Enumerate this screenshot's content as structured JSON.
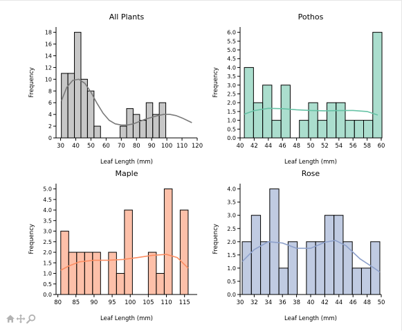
{
  "toolbar": {
    "icons": [
      "home-icon",
      "pan-icon",
      "zoom-icon"
    ]
  },
  "chart_data": [
    {
      "type": "histogram",
      "title": "All Plants",
      "xlabel": "Leaf Length (mm)",
      "ylabel": "Frequency",
      "color": "#999999",
      "kde_color": "#7a7a7a",
      "xlim": [
        27,
        120
      ],
      "ylim": [
        0,
        18.9
      ],
      "xticks": [
        30,
        40,
        50,
        60,
        70,
        80,
        90,
        100,
        110,
        120
      ],
      "yticks": [
        0,
        2,
        4,
        6,
        8,
        10,
        12,
        14,
        16,
        18
      ],
      "bin_edges": [
        30.5,
        34.8,
        39.1,
        43.4,
        47.7,
        52.0,
        56.3,
        60.6,
        64.9,
        69.2,
        73.5,
        77.8,
        82.1,
        86.4,
        90.7,
        95.0,
        99.3,
        103.6,
        107.9,
        112.2,
        116.5
      ],
      "counts": [
        11,
        11,
        18,
        10,
        8,
        2,
        0,
        0,
        0,
        2,
        5,
        4,
        3,
        6,
        4,
        6,
        0,
        0,
        0,
        0
      ],
      "kde": [
        [
          30.5,
          6.3
        ],
        [
          34,
          8.6
        ],
        [
          38,
          9.8
        ],
        [
          42,
          10.0
        ],
        [
          46,
          9.3
        ],
        [
          50,
          7.8
        ],
        [
          54,
          5.9
        ],
        [
          58,
          4.2
        ],
        [
          62,
          3.0
        ],
        [
          66,
          2.4
        ],
        [
          70,
          2.2
        ],
        [
          74,
          2.2
        ],
        [
          78,
          2.4
        ],
        [
          82,
          2.8
        ],
        [
          86,
          3.2
        ],
        [
          90,
          3.5
        ],
        [
          94,
          3.8
        ],
        [
          98,
          4.0
        ],
        [
          102,
          4.0
        ],
        [
          106,
          3.8
        ],
        [
          110,
          3.4
        ],
        [
          114,
          2.9
        ],
        [
          116.5,
          2.6
        ]
      ]
    },
    {
      "type": "histogram",
      "title": "Pothos",
      "xlabel": "Leaf Length (mm)",
      "ylabel": "Frequency",
      "color": "#66c2a5",
      "kde_color": "#66c2a5",
      "xlim": [
        40,
        60
      ],
      "ylim": [
        0,
        6.3
      ],
      "xticks": [
        40,
        42,
        44,
        46,
        48,
        50,
        52,
        54,
        56,
        58,
        60
      ],
      "yticks": [
        0,
        0.5,
        1.0,
        1.5,
        2.0,
        2.5,
        3.0,
        3.5,
        4.0,
        4.5,
        5.0,
        5.5,
        6.0
      ],
      "bin_edges": [
        40.6,
        41.9,
        43.2,
        44.5,
        45.8,
        47.1,
        48.4,
        49.7,
        51.0,
        52.3,
        53.6,
        54.9,
        56.2,
        57.5,
        58.8,
        60.1
      ],
      "counts": [
        4,
        2,
        3,
        1,
        3,
        0,
        1,
        2,
        1,
        2,
        2,
        1,
        1,
        1,
        6
      ],
      "kde": [
        [
          40.6,
          1.35
        ],
        [
          42,
          1.55
        ],
        [
          44,
          1.68
        ],
        [
          46,
          1.66
        ],
        [
          48,
          1.6
        ],
        [
          50,
          1.56
        ],
        [
          52,
          1.54
        ],
        [
          54,
          1.55
        ],
        [
          56,
          1.56
        ],
        [
          58,
          1.5
        ],
        [
          59.5,
          1.3
        ]
      ]
    },
    {
      "type": "histogram",
      "title": "Maple",
      "xlabel": "Leaf Length (mm)",
      "ylabel": "Frequency",
      "color": "#fc8d62",
      "kde_color": "#fc8d62",
      "xlim": [
        79.5,
        118.5
      ],
      "ylim": [
        0,
        5.25
      ],
      "xticks": [
        80,
        85,
        90,
        95,
        100,
        105,
        110,
        115
      ],
      "yticks": [
        0,
        0.5,
        1.0,
        1.5,
        2.0,
        2.5,
        3.0,
        3.5,
        4.0,
        4.5,
        5.0
      ],
      "bin_edges": [
        80.8,
        83.0,
        85.2,
        87.4,
        89.6,
        91.8,
        94.0,
        96.2,
        98.4,
        100.6,
        102.8,
        105.0,
        107.2,
        109.4,
        111.6,
        113.8,
        116.0
      ],
      "counts": [
        3,
        2,
        2,
        2,
        2,
        0,
        2,
        1,
        4,
        0,
        0,
        2,
        1,
        5,
        0,
        4
      ],
      "kde": [
        [
          80.8,
          1.15
        ],
        [
          83,
          1.35
        ],
        [
          86,
          1.55
        ],
        [
          90,
          1.62
        ],
        [
          94,
          1.62
        ],
        [
          98,
          1.66
        ],
        [
          102,
          1.75
        ],
        [
          106,
          1.85
        ],
        [
          110,
          1.9
        ],
        [
          113,
          1.75
        ],
        [
          116,
          1.25
        ]
      ]
    },
    {
      "type": "histogram",
      "title": "Rose",
      "xlabel": "Leaf Length (mm)",
      "ylabel": "Frequency",
      "color": "#8da0cb",
      "kde_color": "#8da0cb",
      "xlim": [
        30,
        50
      ],
      "ylim": [
        0,
        4.2
      ],
      "xticks": [
        30,
        32,
        34,
        36,
        38,
        40,
        42,
        44,
        46,
        48,
        50
      ],
      "yticks": [
        0,
        0.5,
        1.0,
        1.5,
        2.0,
        2.5,
        3.0,
        3.5,
        4.0
      ],
      "bin_edges": [
        30.3,
        31.6,
        32.9,
        34.2,
        35.5,
        36.8,
        38.1,
        39.4,
        40.7,
        42.0,
        43.3,
        44.6,
        45.9,
        47.2,
        48.5,
        49.8
      ],
      "counts": [
        2,
        3,
        2,
        4,
        1,
        2,
        0,
        2,
        2,
        3,
        3,
        2,
        1,
        1,
        2
      ],
      "kde": [
        [
          30.3,
          1.25
        ],
        [
          32,
          1.7
        ],
        [
          34,
          2.0
        ],
        [
          36,
          1.95
        ],
        [
          38,
          1.75
        ],
        [
          40,
          1.75
        ],
        [
          42,
          1.98
        ],
        [
          43.5,
          2.05
        ],
        [
          45,
          1.85
        ],
        [
          47,
          1.35
        ],
        [
          49,
          1.0
        ],
        [
          49.8,
          0.85
        ]
      ]
    }
  ]
}
